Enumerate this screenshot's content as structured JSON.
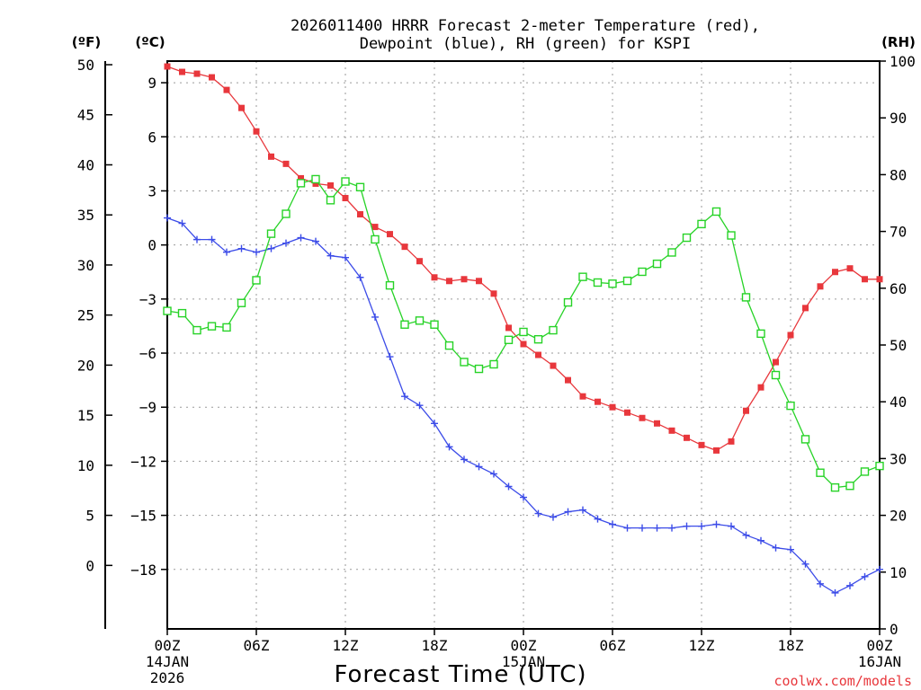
{
  "chart_data": {
    "type": "line",
    "title_line1": "2026011400 HRRR Forecast 2-meter Temperature (red),",
    "title_line2": "Dewpoint (blue), RH (green) for KSPI",
    "xlabel": "Forecast Time (UTC)",
    "watermark": "coolwx.com/models",
    "unit_labels": {
      "fahrenheit": "(ºF)",
      "celsius": "(ºC)",
      "rh": "(RH)"
    },
    "x_range": [
      0,
      48
    ],
    "celsius_range": [
      -21.3,
      10.2
    ],
    "rh_range": [
      0,
      100
    ],
    "x_ticks": [
      {
        "hour": 0,
        "label": "00Z",
        "date": "14JAN",
        "year": "2026"
      },
      {
        "hour": 6,
        "label": "06Z",
        "date": "",
        "year": ""
      },
      {
        "hour": 12,
        "label": "12Z",
        "date": "",
        "year": ""
      },
      {
        "hour": 18,
        "label": "18Z",
        "date": "",
        "year": ""
      },
      {
        "hour": 24,
        "label": "00Z",
        "date": "15JAN",
        "year": ""
      },
      {
        "hour": 30,
        "label": "06Z",
        "date": "",
        "year": ""
      },
      {
        "hour": 36,
        "label": "12Z",
        "date": "",
        "year": ""
      },
      {
        "hour": 42,
        "label": "18Z",
        "date": "",
        "year": ""
      },
      {
        "hour": 48,
        "label": "00Z",
        "date": "16JAN",
        "year": ""
      }
    ],
    "celsius_ticks": [
      {
        "value": 9,
        "label": "9"
      },
      {
        "value": 6,
        "label": "6"
      },
      {
        "value": 3,
        "label": "3"
      },
      {
        "value": 0,
        "label": "0"
      },
      {
        "value": -3,
        "label": "−3"
      },
      {
        "value": -6,
        "label": "−6"
      },
      {
        "value": -9,
        "label": "−9"
      },
      {
        "value": -12,
        "label": "−12"
      },
      {
        "value": -15,
        "label": "−15"
      },
      {
        "value": -18,
        "label": "−18"
      }
    ],
    "fahrenheit_ticks": [
      {
        "value": 50,
        "label": "50"
      },
      {
        "value": 45,
        "label": "45"
      },
      {
        "value": 40,
        "label": "40"
      },
      {
        "value": 35,
        "label": "35"
      },
      {
        "value": 30,
        "label": "30"
      },
      {
        "value": 25,
        "label": "25"
      },
      {
        "value": 20,
        "label": "20"
      },
      {
        "value": 15,
        "label": "15"
      },
      {
        "value": 10,
        "label": "10"
      },
      {
        "value": 5,
        "label": "5"
      },
      {
        "value": 0,
        "label": "0"
      }
    ],
    "rh_ticks": [
      {
        "value": 100,
        "label": "100"
      },
      {
        "value": 90,
        "label": "90"
      },
      {
        "value": 80,
        "label": "80"
      },
      {
        "value": 70,
        "label": "70"
      },
      {
        "value": 60,
        "label": "60"
      },
      {
        "value": 50,
        "label": "50"
      },
      {
        "value": 40,
        "label": "40"
      },
      {
        "value": 30,
        "label": "30"
      },
      {
        "value": 20,
        "label": "20"
      },
      {
        "value": 10,
        "label": "10"
      },
      {
        "value": 0,
        "label": "0"
      }
    ],
    "x": [
      0,
      1,
      2,
      3,
      4,
      5,
      6,
      7,
      8,
      9,
      10,
      11,
      12,
      13,
      14,
      15,
      16,
      17,
      18,
      19,
      20,
      21,
      22,
      23,
      24,
      25,
      26,
      27,
      28,
      29,
      30,
      31,
      32,
      33,
      34,
      35,
      36,
      37,
      38,
      39,
      40,
      41,
      42,
      43,
      44,
      45,
      46,
      47,
      48
    ],
    "series": [
      {
        "name": "2-meter Temperature",
        "unit": "C",
        "axis": "celsius",
        "color": "#e8373c",
        "marker": "filled-square",
        "values": [
          9.9,
          9.6,
          9.5,
          9.3,
          8.6,
          7.6,
          6.3,
          4.9,
          4.5,
          3.7,
          3.4,
          3.3,
          2.6,
          1.7,
          1.0,
          0.6,
          -0.1,
          -0.9,
          -1.8,
          -2.0,
          -1.9,
          -2.0,
          -2.7,
          -4.6,
          -5.5,
          -6.1,
          -6.7,
          -7.5,
          -8.4,
          -8.7,
          -9.0,
          -9.3,
          -9.6,
          -9.9,
          -10.3,
          -10.7,
          -11.1,
          -11.4,
          -10.9,
          -9.2,
          -7.9,
          -6.5,
          -5.0,
          -3.5,
          -2.3,
          -1.5,
          -1.3,
          -1.9,
          -1.9
        ]
      },
      {
        "name": "Dewpoint",
        "unit": "C",
        "axis": "celsius",
        "color": "#3c4ce8",
        "marker": "plus",
        "values": [
          1.5,
          1.2,
          0.3,
          0.3,
          -0.4,
          -0.2,
          -0.4,
          -0.2,
          0.1,
          0.4,
          0.2,
          -0.6,
          -0.7,
          -1.8,
          -4.0,
          -6.2,
          -8.4,
          -8.9,
          -9.9,
          -11.2,
          -11.9,
          -12.3,
          -12.7,
          -13.4,
          -14.0,
          -14.9,
          -15.1,
          -14.8,
          -14.7,
          -15.2,
          -15.5,
          -15.7,
          -15.7,
          -15.7,
          -15.7,
          -15.6,
          -15.6,
          -15.5,
          -15.6,
          -16.1,
          -16.4,
          -16.8,
          -16.9,
          -17.7,
          -18.8,
          -19.3,
          -18.9,
          -18.4,
          -18.0
        ]
      },
      {
        "name": "RH",
        "unit": "%",
        "axis": "rh",
        "color": "#27d327",
        "marker": "open-square",
        "values": [
          56,
          55.6,
          52.6,
          53.3,
          53.1,
          57.4,
          61.4,
          69.6,
          73.1,
          78.5,
          79.2,
          75.5,
          78.8,
          77.8,
          68.6,
          60.5,
          53.6,
          54.3,
          53.6,
          49.9,
          47.0,
          45.8,
          46.6,
          50.9,
          52.3,
          51.0,
          52.6,
          57.5,
          62.0,
          61.0,
          60.8,
          61.3,
          62.9,
          64.3,
          66.3,
          68.9,
          71.3,
          73.5,
          69.3,
          58.4,
          52.0,
          44.7,
          39.3,
          33.4,
          27.5,
          24.9,
          25.2,
          27.7,
          28.7
        ]
      }
    ]
  }
}
